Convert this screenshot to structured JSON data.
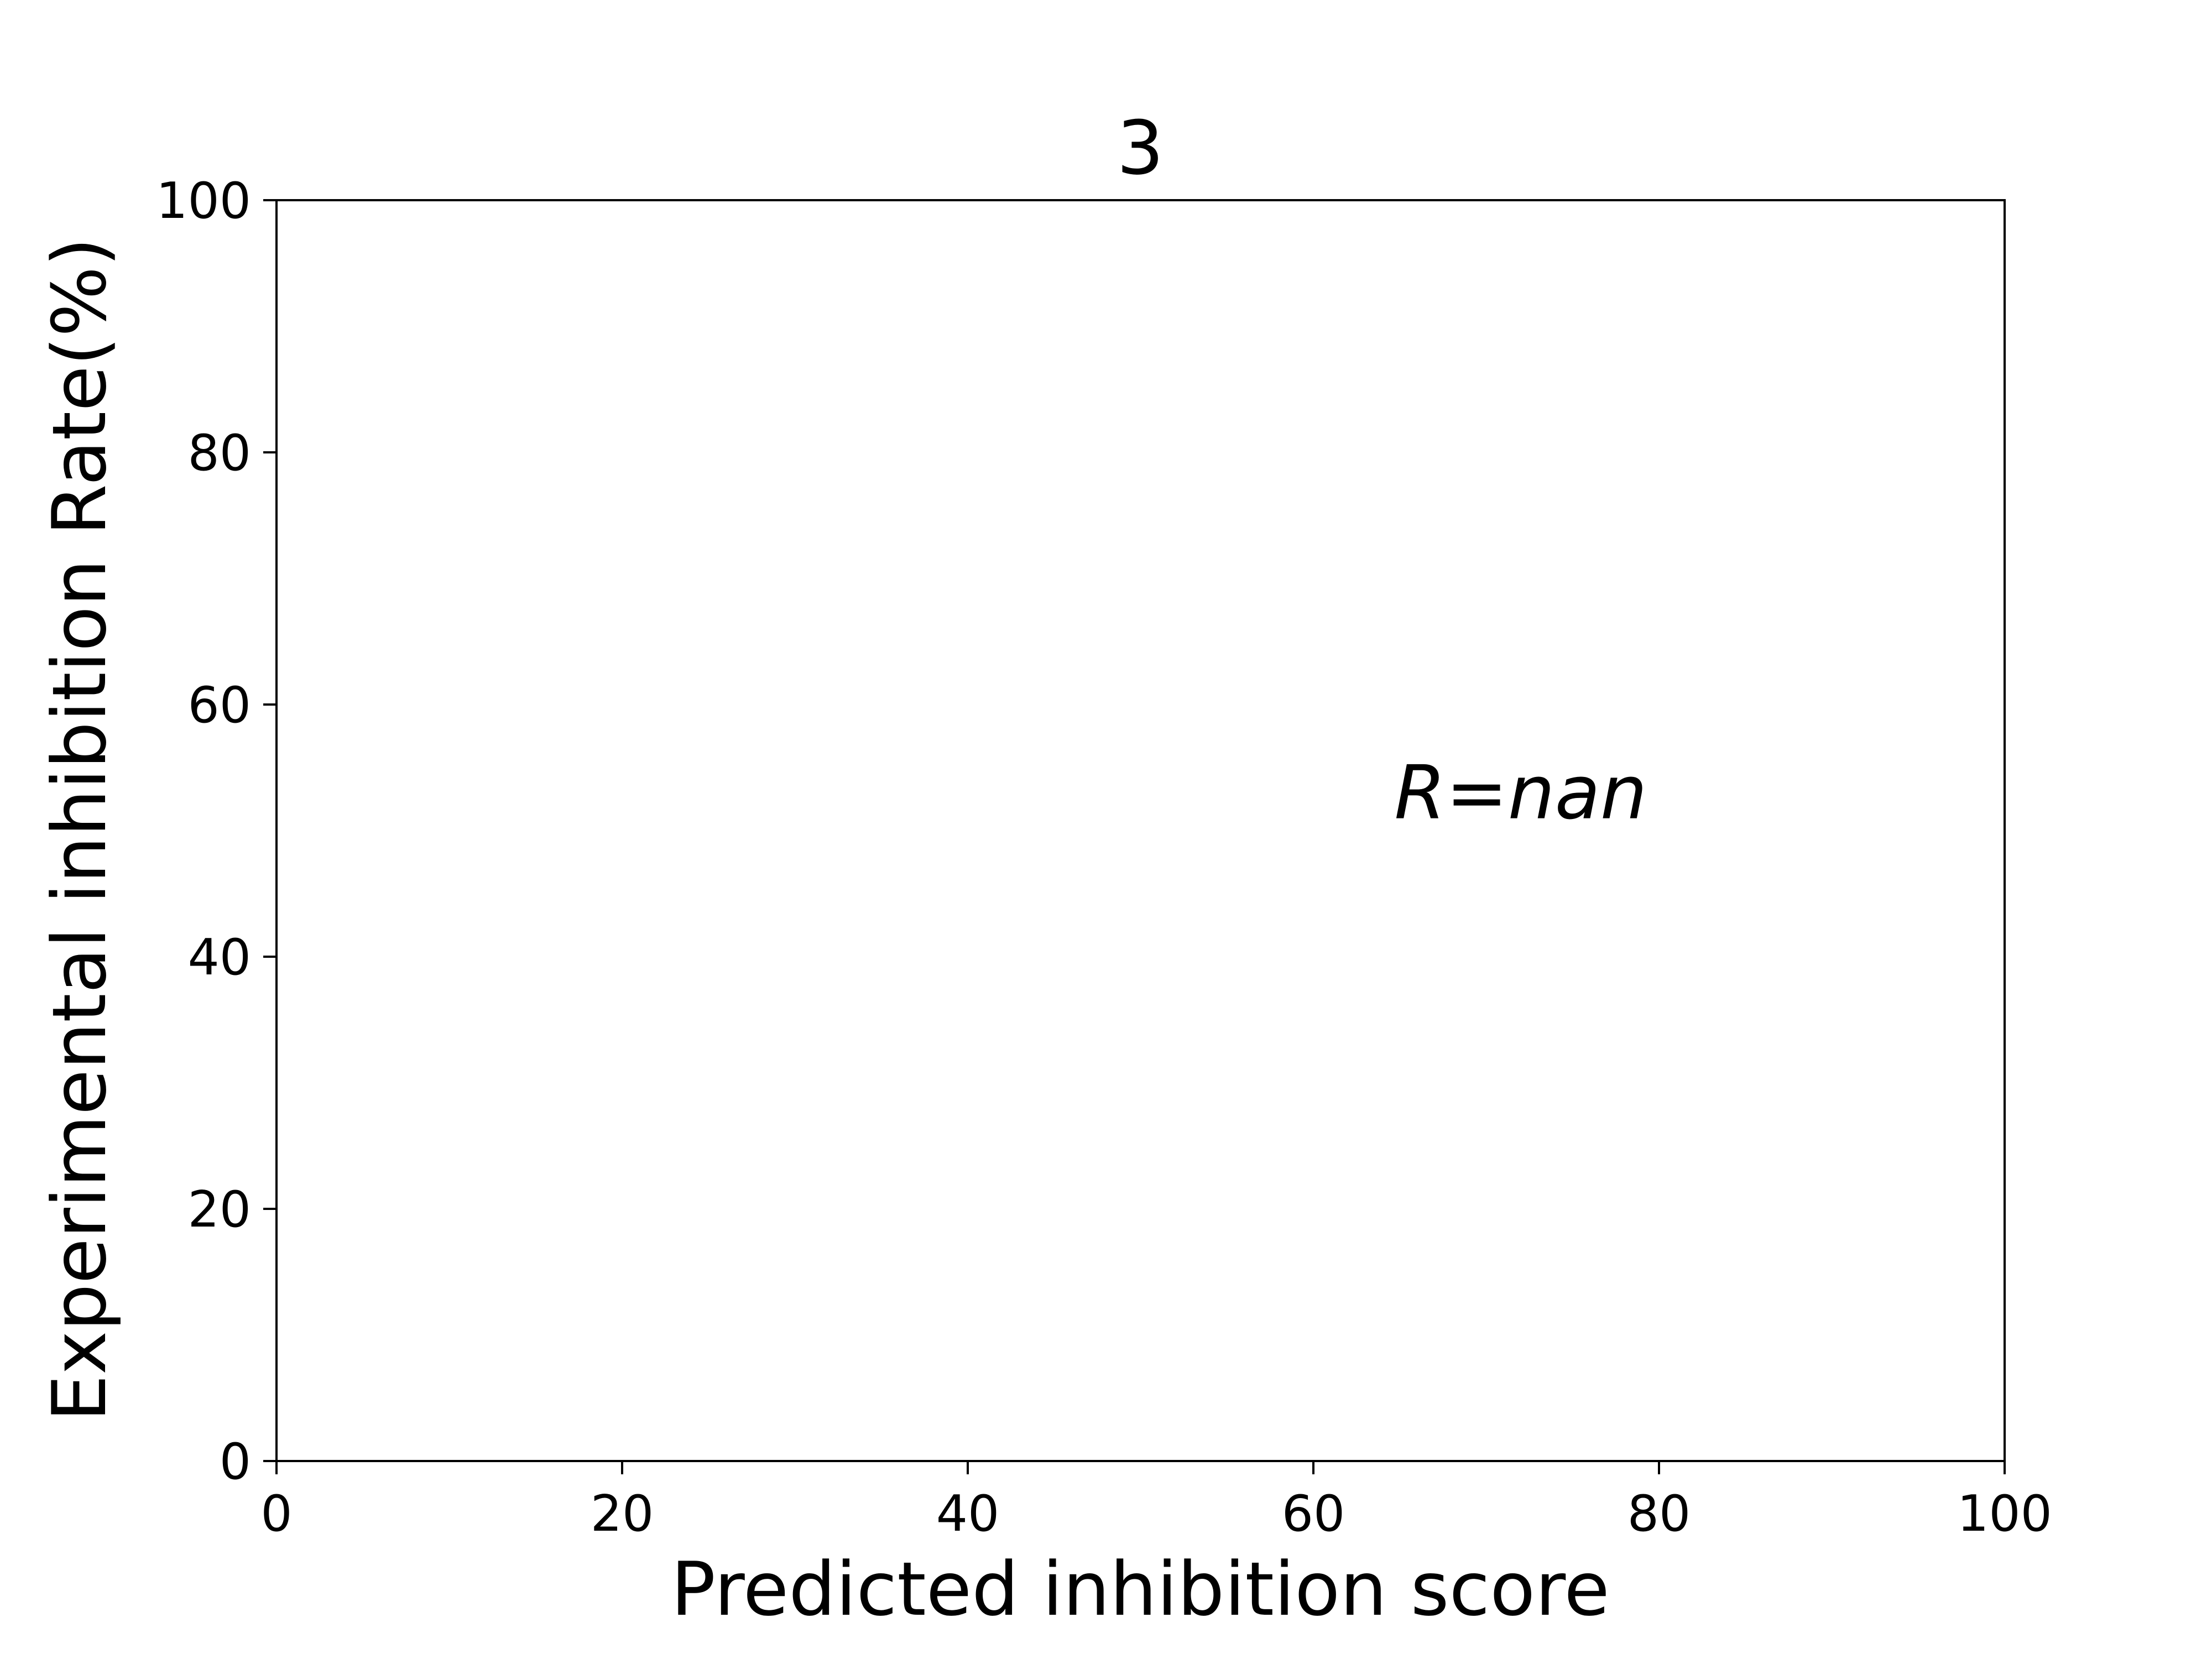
{
  "chart_data": {
    "type": "scatter",
    "title": "3",
    "xlabel": "Predicted inhibition score",
    "ylabel": "Experimental inhibition Rate(%)",
    "xlim": [
      0,
      100
    ],
    "ylim": [
      0,
      100
    ],
    "xticks": [
      0,
      20,
      40,
      60,
      80,
      100
    ],
    "yticks": [
      0,
      20,
      40,
      60,
      80,
      100
    ],
    "xtick_labels": [
      "0",
      "20",
      "40",
      "60",
      "80",
      "100"
    ],
    "ytick_labels": [
      "0",
      "20",
      "40",
      "60",
      "80",
      "100"
    ],
    "grid": false,
    "series": [
      {
        "x": [],
        "y": []
      }
    ],
    "annotations": [
      {
        "text": "R=nan",
        "x": 72,
        "y": 53
      }
    ]
  }
}
